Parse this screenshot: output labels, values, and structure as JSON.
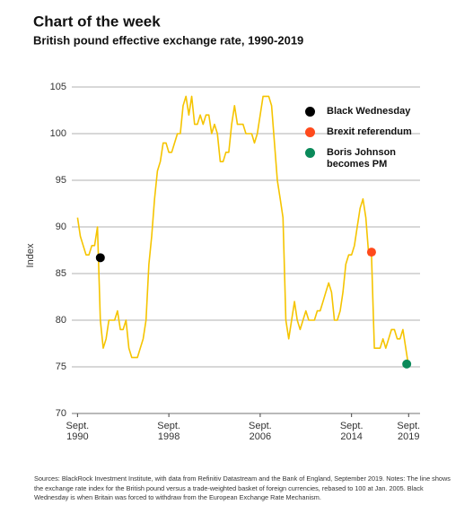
{
  "chart_data": {
    "type": "line",
    "title": "Chart of the week",
    "subtitle": "British pound effective exchange rate, 1990-2019",
    "y_label": "Index",
    "source": "Sources: BlackRock Investment Institute, with data from Refinitiv Datastream and the Bank of England, September 2019. Notes: The line shows the exchange rate index for the British pound versus a trade-weighted basket of foreign currencies, rebased to 100 at Jan. 2005. Black Wednesday is when Britain was forced to withdraw from the European Exchange Rate Mechanism.",
    "x": [
      "1990-09",
      "1990-12",
      "1991-03",
      "1991-06",
      "1991-09",
      "1991-12",
      "1992-03",
      "1992-06",
      "1992-09",
      "1992-12",
      "1993-03",
      "1993-06",
      "1993-09",
      "1993-12",
      "1994-03",
      "1994-06",
      "1994-09",
      "1994-12",
      "1995-03",
      "1995-06",
      "1995-09",
      "1995-12",
      "1996-03",
      "1996-06",
      "1996-09",
      "1996-12",
      "1997-03",
      "1997-06",
      "1997-09",
      "1997-12",
      "1998-03",
      "1998-06",
      "1998-09",
      "1998-12",
      "1999-03",
      "1999-06",
      "1999-09",
      "1999-12",
      "2000-03",
      "2000-06",
      "2000-09",
      "2000-12",
      "2001-03",
      "2001-06",
      "2001-09",
      "2001-12",
      "2002-03",
      "2002-06",
      "2002-09",
      "2002-12",
      "2003-03",
      "2003-06",
      "2003-09",
      "2003-12",
      "2004-03",
      "2004-06",
      "2004-09",
      "2004-12",
      "2005-03",
      "2005-06",
      "2005-09",
      "2005-12",
      "2006-03",
      "2006-06",
      "2006-09",
      "2006-12",
      "2007-03",
      "2007-06",
      "2007-09",
      "2007-12",
      "2008-03",
      "2008-06",
      "2008-09",
      "2008-12",
      "2009-03",
      "2009-06",
      "2009-09",
      "2009-12",
      "2010-03",
      "2010-06",
      "2010-09",
      "2010-12",
      "2011-03",
      "2011-06",
      "2011-09",
      "2011-12",
      "2012-03",
      "2012-06",
      "2012-09",
      "2012-12",
      "2013-03",
      "2013-06",
      "2013-09",
      "2013-12",
      "2014-03",
      "2014-06",
      "2014-09",
      "2014-12",
      "2015-03",
      "2015-06",
      "2015-09",
      "2015-12",
      "2016-03",
      "2016-06",
      "2016-09",
      "2016-12",
      "2017-03",
      "2017-06",
      "2017-09",
      "2017-12",
      "2018-03",
      "2018-06",
      "2018-09",
      "2018-12",
      "2019-03",
      "2019-06",
      "2019-09"
    ],
    "series": [
      {
        "name": "Index",
        "color": "#f5c400",
        "values": [
          91,
          89,
          88,
          87,
          87,
          88,
          88,
          90,
          80,
          77,
          78,
          80,
          80,
          80,
          81,
          79,
          79,
          80,
          77,
          76,
          76,
          76,
          77,
          78,
          80,
          86,
          89,
          93,
          96,
          97,
          99,
          99,
          98,
          98,
          99,
          100,
          100,
          103,
          104,
          102,
          104,
          101,
          101,
          102,
          101,
          102,
          102,
          100,
          101,
          100,
          97,
          97,
          98,
          98,
          101,
          103,
          101,
          101,
          101,
          100,
          100,
          100,
          99,
          100,
          102,
          104,
          104,
          104,
          103,
          99,
          95,
          93,
          91,
          80,
          78,
          80,
          82,
          80,
          79,
          80,
          81,
          80,
          80,
          80,
          81,
          81,
          82,
          83,
          84,
          83,
          80,
          80,
          81,
          83,
          86,
          87,
          87,
          88,
          90,
          92,
          93,
          91,
          87,
          87,
          77,
          77,
          77,
          78,
          77,
          78,
          79,
          79,
          78,
          78,
          79,
          77,
          75
        ]
      }
    ],
    "events": [
      {
        "name": "Black Wednesday",
        "x": "1992-09",
        "value": 86.7,
        "color": "#000000"
      },
      {
        "name": "Brexit referendum",
        "x": "2016-06",
        "value": 87.3,
        "color": "#ff4a1c"
      },
      {
        "name": "Boris Johnson becomes PM",
        "x": "2019-07",
        "value": 75.3,
        "color": "#0a8a5a"
      }
    ],
    "xlim": [
      "1990-03",
      "2020-09"
    ],
    "xticks": [
      {
        "value": "1990-09",
        "label": "Sept. 1990"
      },
      {
        "value": "1998-09",
        "label": "Sept. 1998"
      },
      {
        "value": "2006-09",
        "label": "Sept. 2006"
      },
      {
        "value": "2014-09",
        "label": "Sept. 2014"
      },
      {
        "value": "2019-09",
        "label": "Sept. 2019"
      }
    ],
    "ylim": [
      70,
      105
    ],
    "yticks": [
      70,
      75,
      80,
      85,
      90,
      95,
      100,
      105
    ],
    "grid": true
  }
}
